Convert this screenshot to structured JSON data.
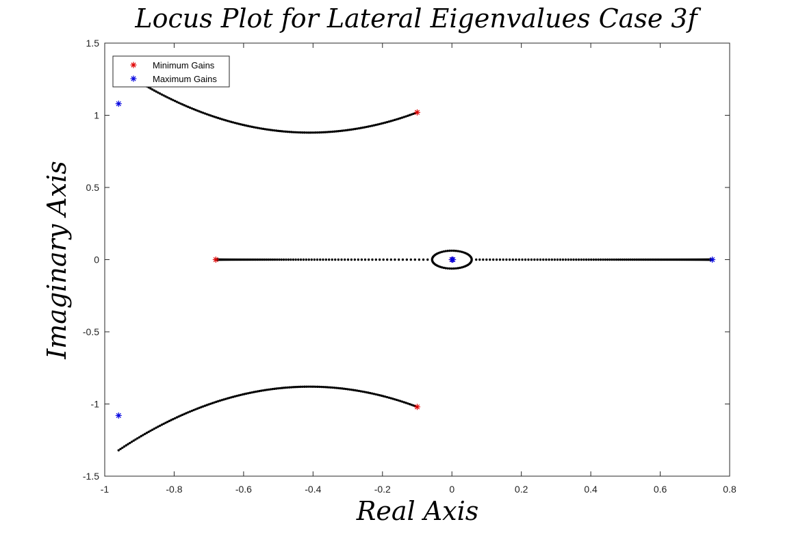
{
  "chart_data": {
    "type": "scatter",
    "title": "Locus Plot for Lateral Eigenvalues Case 3f",
    "xlabel": "Real Axis",
    "ylabel": "Imaginary Axis",
    "xlim": [
      -1,
      0.8
    ],
    "ylim": [
      -1.5,
      1.5
    ],
    "xticks": [
      "-1",
      "-0.8",
      "-0.6",
      "-0.4",
      "-0.2",
      "0",
      "0.2",
      "0.4",
      "0.6",
      "0.8"
    ],
    "yticks": [
      "-1.5",
      "-1",
      "-0.5",
      "0",
      "0.5",
      "1",
      "1.5"
    ],
    "grid": false,
    "legend_position": "top-left",
    "legend": [
      {
        "label": "Minimum Gains",
        "color": "#e00000",
        "marker": "asterisk"
      },
      {
        "label": "Maximum Gains",
        "color": "#0000e0",
        "marker": "asterisk"
      }
    ],
    "locus_color": "#000000",
    "locus_branches": [
      {
        "name": "upper complex pair",
        "from": [
          -0.1,
          1.02
        ],
        "to": [
          -0.96,
          1.08
        ],
        "vertex": [
          -0.41,
          0.88
        ],
        "points": 160
      },
      {
        "name": "lower complex pair",
        "from": [
          -0.1,
          -1.02
        ],
        "to": [
          -0.96,
          -1.08
        ],
        "vertex": [
          -0.41,
          -0.88
        ],
        "points": 160
      },
      {
        "name": "left real root",
        "from": [
          -0.68,
          0
        ],
        "to": [
          -0.07,
          0
        ],
        "points": 110
      },
      {
        "name": "right real root",
        "from": [
          0.75,
          0
        ],
        "to": [
          0.07,
          0
        ],
        "points": 150
      },
      {
        "name": "near-origin loop",
        "center": [
          0,
          0
        ],
        "radius_x": 0.057,
        "radius_y": 0.062,
        "points": 60
      }
    ],
    "markers": {
      "minimum_gains": [
        [
          -0.1,
          1.02
        ],
        [
          -0.1,
          -1.02
        ],
        [
          -0.68,
          0
        ],
        [
          0,
          0
        ]
      ],
      "maximum_gains": [
        [
          -0.96,
          1.08
        ],
        [
          -0.96,
          -1.08
        ],
        [
          0.75,
          0
        ],
        [
          0,
          0
        ],
        [
          0.003,
          0
        ]
      ]
    }
  }
}
